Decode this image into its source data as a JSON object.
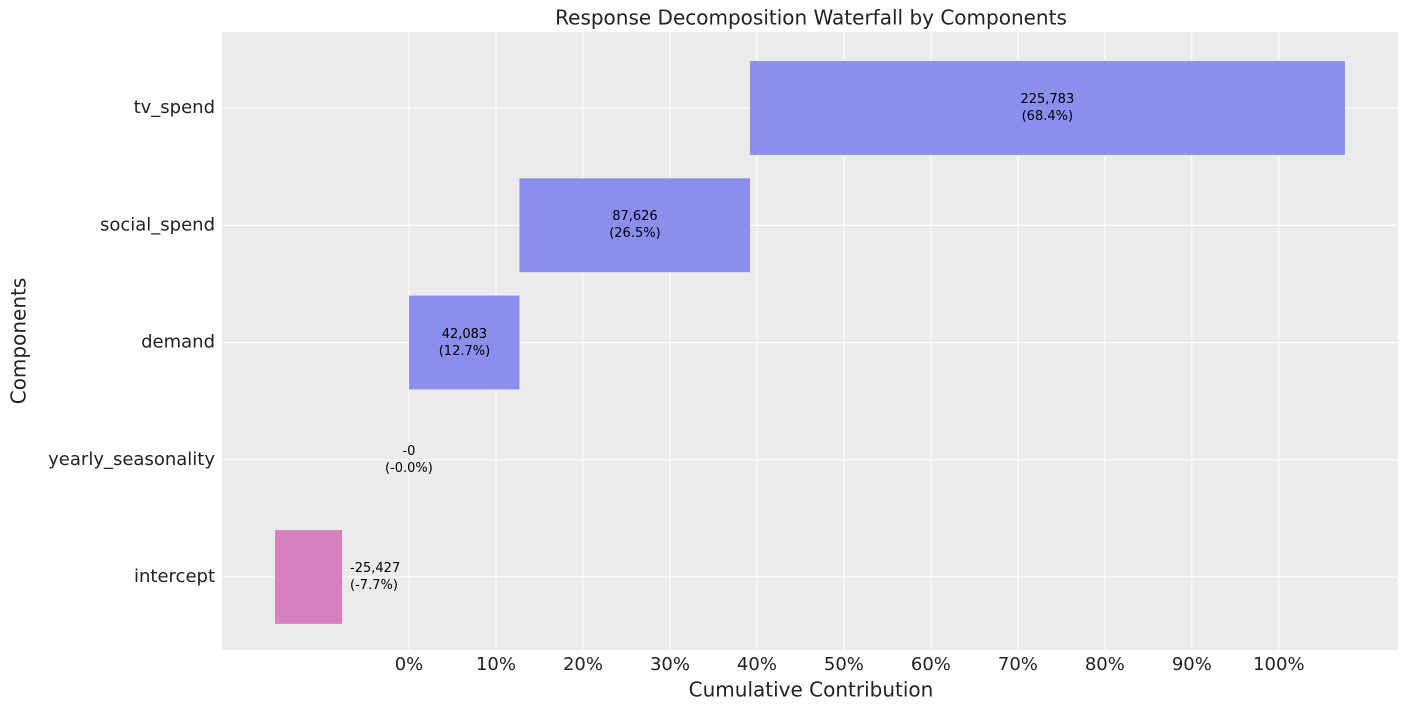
{
  "chart_data": {
    "type": "waterfall",
    "title": "Response Decomposition Waterfall by Components",
    "xlabel": "Cumulative Contribution",
    "ylabel": "Components",
    "categories": [
      "intercept",
      "yearly_seasonality",
      "demand",
      "social_spend",
      "tv_spend"
    ],
    "values": [
      -7.7,
      -0.0,
      12.7,
      26.5,
      68.4
    ],
    "value_labels": [
      "-25,427\n(-7.7%)",
      "-0\n(-0.0%)",
      "42,083\n(12.7%)",
      "87,626\n(26.5%)",
      "225,783\n(68.4%)"
    ],
    "positive_color": "#8a8eed",
    "negative_color": "#d87fc0",
    "xlim": [
      -21.5,
      113.7
    ],
    "xticks": [
      {
        "value": 0,
        "label": "0%"
      },
      {
        "value": 10,
        "label": "10%"
      },
      {
        "value": 20,
        "label": "20%"
      },
      {
        "value": 30,
        "label": "30%"
      },
      {
        "value": 40,
        "label": "40%"
      },
      {
        "value": 50,
        "label": "50%"
      },
      {
        "value": 60,
        "label": "60%"
      },
      {
        "value": 70,
        "label": "70%"
      },
      {
        "value": 80,
        "label": "80%"
      },
      {
        "value": 90,
        "label": "90%"
      },
      {
        "value": 100,
        "label": "100%"
      }
    ],
    "grid": true
  }
}
